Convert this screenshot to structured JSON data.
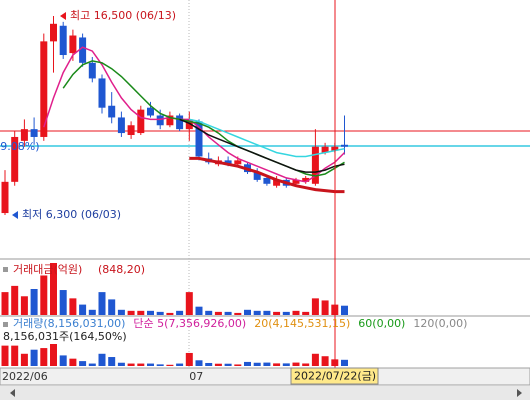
{
  "chart_data": {
    "type": "candlestick",
    "categories": [
      "2022/06",
      null,
      null,
      null,
      null,
      null,
      null,
      null,
      null,
      null,
      null,
      null,
      null,
      null,
      null,
      null,
      null,
      null,
      null,
      "07",
      null,
      null,
      null,
      null,
      null,
      null,
      null,
      null,
      null,
      null,
      null,
      null,
      null,
      null,
      null,
      null
    ],
    "open": [
      6400,
      8000,
      10100,
      10700,
      10300,
      15200,
      16000,
      14600,
      15400,
      14100,
      13300,
      11900,
      11300,
      10400,
      10500,
      11800,
      11400,
      10900,
      11400,
      10700,
      11100,
      9200,
      8900,
      9100,
      8900,
      8900,
      8500,
      8200,
      7800,
      8100,
      7900,
      8000,
      7900,
      9500,
      9600,
      9900
    ],
    "high": [
      8600,
      10600,
      11200,
      11300,
      15600,
      16500,
      16200,
      15800,
      15600,
      14400,
      13500,
      12600,
      11600,
      11100,
      11900,
      12100,
      11700,
      11600,
      11500,
      11600,
      11200,
      9500,
      9300,
      9300,
      9300,
      9000,
      8700,
      8300,
      8300,
      8200,
      8200,
      8300,
      10700,
      10000,
      10000,
      11400
    ],
    "low": [
      6300,
      7800,
      9800,
      9900,
      10100,
      13600,
      14300,
      14200,
      13900,
      13100,
      11500,
      11000,
      10300,
      10200,
      10400,
      11300,
      10700,
      10800,
      10600,
      10100,
      9100,
      8900,
      8800,
      8800,
      8800,
      8400,
      8000,
      7800,
      7700,
      7700,
      7800,
      7900,
      7800,
      9400,
      9500,
      9400
    ],
    "close": [
      8000,
      10300,
      10700,
      10300,
      15200,
      16100,
      14500,
      15500,
      14100,
      13300,
      11800,
      11300,
      10500,
      10900,
      11700,
      11400,
      10900,
      11400,
      10700,
      11200,
      9300,
      9000,
      9100,
      8900,
      9100,
      8500,
      8100,
      7900,
      8100,
      7800,
      8100,
      8200,
      9800,
      9800,
      9800,
      9800
    ],
    "up_color": "#e8141c",
    "down_color": "#1f57d1",
    "series": [
      {
        "color": "#e0208c",
        "values": [
          null,
          null,
          null,
          null,
          10800,
          12300,
          13600,
          14500,
          14900,
          14700,
          14000,
          13100,
          12300,
          11700,
          11300,
          11200,
          11200,
          11300,
          11200,
          11200,
          10800,
          10300,
          9900,
          9500,
          9200,
          9000,
          8800,
          8600,
          8400,
          8200,
          8100,
          8000,
          8300,
          8700,
          9000,
          9500
        ]
      },
      {
        "color": "#1a8a1a",
        "values": [
          null,
          null,
          null,
          null,
          null,
          null,
          12800,
          13500,
          14000,
          14200,
          14100,
          13800,
          13400,
          12900,
          12400,
          11900,
          11500,
          11300,
          11200,
          11100,
          11000,
          10800,
          10500,
          10100,
          9800,
          9600,
          9400,
          9200,
          9000,
          8800,
          8600,
          8400,
          8300,
          8400,
          8700,
          9000
        ]
      },
      {
        "color": "#111111",
        "values": [
          null,
          null,
          null,
          null,
          null,
          null,
          null,
          null,
          null,
          null,
          null,
          null,
          null,
          null,
          null,
          null,
          null,
          null,
          11200,
          11000,
          10700,
          10400,
          10200,
          10000,
          9800,
          9600,
          9400,
          9200,
          9000,
          8800,
          8600,
          8500,
          8500,
          8600,
          8800,
          8900
        ]
      },
      {
        "color": "#c8141c",
        "values": [
          null,
          null,
          null,
          null,
          null,
          null,
          null,
          null,
          null,
          null,
          null,
          null,
          null,
          null,
          null,
          null,
          null,
          null,
          null,
          9200,
          9200,
          9100,
          9000,
          8900,
          8800,
          8650,
          8500,
          8300,
          8100,
          7950,
          7800,
          7700,
          7600,
          7550,
          7500,
          7500
        ]
      },
      {
        "color": "#35d6e0",
        "values": [
          null,
          null,
          null,
          null,
          null,
          null,
          null,
          null,
          null,
          null,
          null,
          null,
          null,
          null,
          null,
          null,
          null,
          null,
          null,
          11200,
          11100,
          10900,
          10700,
          10500,
          10300,
          10100,
          9900,
          9700,
          9500,
          9400,
          9300,
          9300,
          9400,
          9500,
          9600,
          9700
        ]
      }
    ],
    "amount": [
      1870,
      2380,
      1530,
      2125,
      3230,
      4250,
      2040,
      1360,
      850,
      425,
      1870,
      1275,
      425,
      340,
      340,
      340,
      255,
      170,
      340,
      1870,
      680,
      340,
      255,
      255,
      170,
      425,
      340,
      340,
      255,
      255,
      340,
      255,
      1360,
      1190,
      848.2,
      760
    ],
    "volume": [
      25000000,
      25000000,
      15000000,
      20000000,
      22000000,
      27000000,
      13000000,
      9000000,
      6000000,
      3000000,
      15000000,
      11000000,
      4000000,
      3000000,
      3000000,
      3000000,
      2000000,
      1500000,
      3000000,
      16000000,
      7000000,
      3700000,
      2800000,
      2800000,
      1900000,
      5000000,
      4000000,
      4200000,
      3200000,
      3200000,
      4200000,
      3100000,
      15000000,
      12000000,
      8156031,
      7600000
    ],
    "high_label": "최고 16,500 (06/13)",
    "low_label": "최저 6,300 (06/03)",
    "change_label": "(9.08%)",
    "amount_title": "거래대금(억원)",
    "amount_value": "(848,20)",
    "volume_legend": [
      {
        "label": "거래량(8,156,031,00)",
        "color": "#3a7fd0"
      },
      {
        "label": "단순 5(7,356,926,00)",
        "color": "#d0209c"
      },
      {
        "label": "20(4,145,531,15)",
        "color": "#e09010"
      },
      {
        "label": "60(0,00)",
        "color": "#1a9a1a"
      },
      {
        "label": "120(0,00)",
        "color": "#888888"
      }
    ],
    "volume_note": "8,156,031주(164,50%)",
    "crosshair_date": "2022/07/22(금)"
  }
}
